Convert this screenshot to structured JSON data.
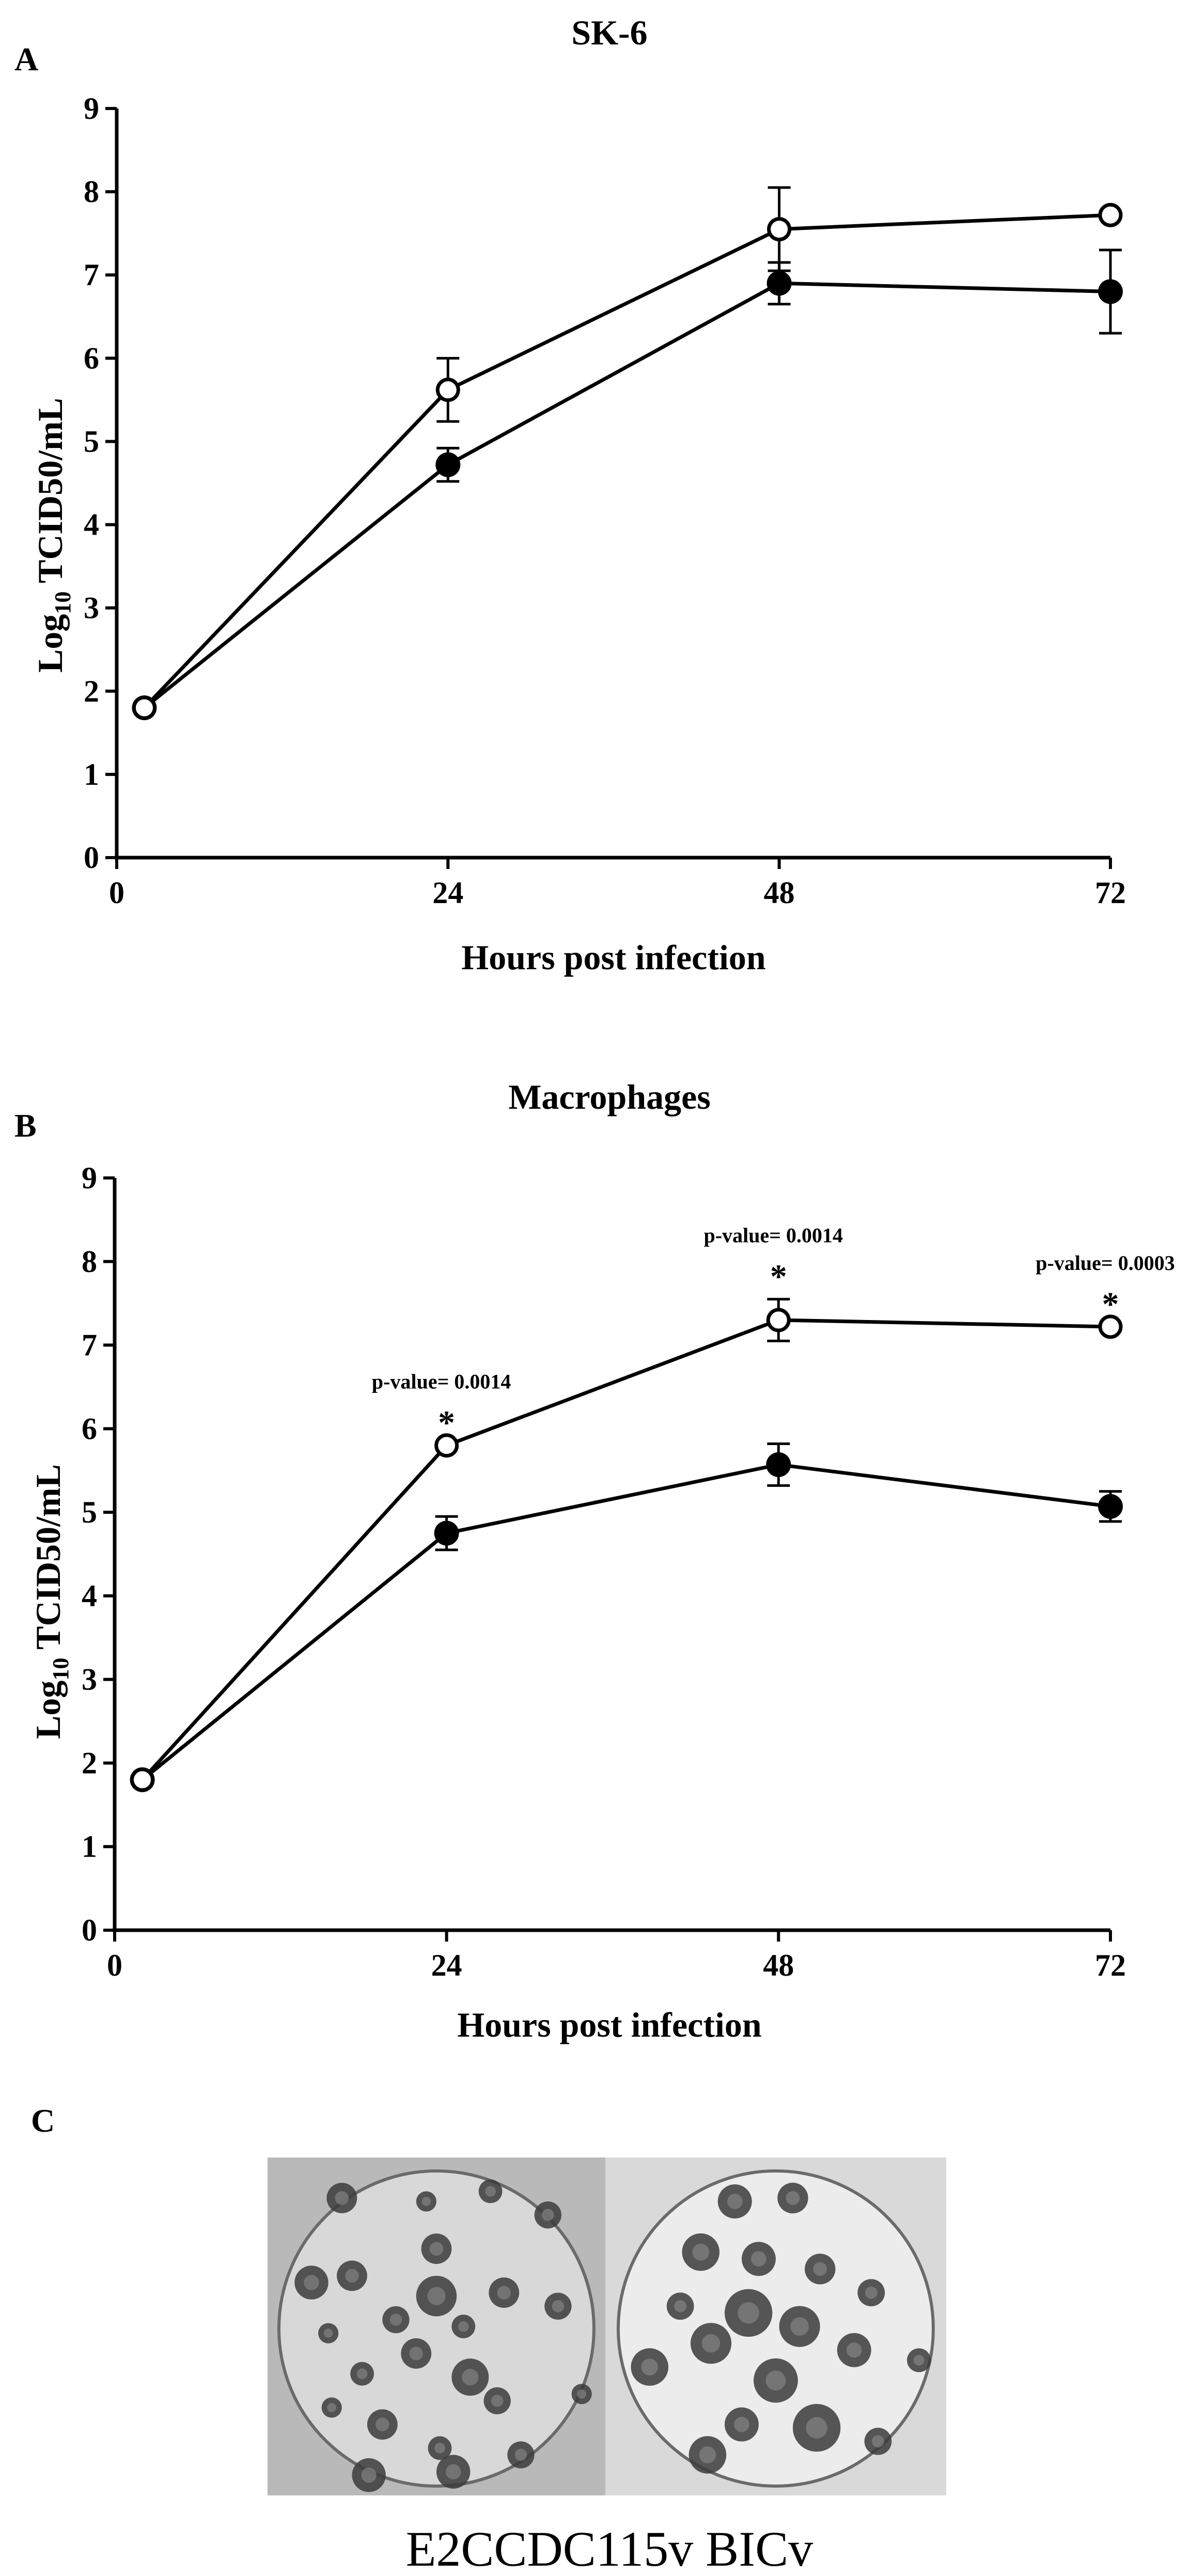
{
  "panel_c": {
    "letter": "C",
    "caption": "E2CCDC115v BICv",
    "wells": [
      {
        "name": "E2CCDC115v",
        "background": "#b9b9b9",
        "well_fill": "#d8d8d8",
        "plaque": "#3b3b3b"
      },
      {
        "name": "BICv",
        "background": "#d9d9d9",
        "well_fill": "#ececec",
        "plaque": "#3b3b3b"
      }
    ]
  },
  "chart_data": [
    {
      "type": "line",
      "panel": "A",
      "title": "SK-6",
      "xlabel": "Hours post infection",
      "ylabel": "Log10 TCID50/mL",
      "ylabel_base": "Log",
      "ylabel_sub": "10",
      "ylabel_rest": " TCID50/mL",
      "xlim": [
        0,
        72
      ],
      "ylim": [
        0,
        9
      ],
      "xticks": [
        0,
        24,
        48,
        72
      ],
      "yticks": [
        0,
        1,
        2,
        3,
        4,
        5,
        6,
        7,
        8,
        9
      ],
      "series": [
        {
          "name": "open circles",
          "marker": "open",
          "x": [
            2,
            24,
            48,
            72
          ],
          "y": [
            1.8,
            5.62,
            7.55,
            7.72
          ],
          "err": [
            0,
            0.38,
            0.5,
            0
          ]
        },
        {
          "name": "filled circles",
          "marker": "filled",
          "x": [
            2,
            24,
            48,
            72
          ],
          "y": [
            1.8,
            4.72,
            6.9,
            6.8
          ],
          "err": [
            0,
            0.2,
            0.25,
            0.5
          ]
        }
      ],
      "annotations": []
    },
    {
      "type": "line",
      "panel": "B",
      "title": "Macrophages",
      "xlabel": "Hours post infection",
      "ylabel": "Log10 TCID50/mL",
      "ylabel_base": "Log",
      "ylabel_sub": "10",
      "ylabel_rest": " TCID50/mL",
      "xlim": [
        0,
        72
      ],
      "ylim": [
        0,
        9
      ],
      "xticks": [
        0,
        24,
        48,
        72
      ],
      "yticks": [
        0,
        1,
        2,
        3,
        4,
        5,
        6,
        7,
        8,
        9
      ],
      "series": [
        {
          "name": "open circles",
          "marker": "open",
          "x": [
            2,
            24,
            48,
            72
          ],
          "y": [
            1.8,
            5.8,
            7.3,
            7.22
          ],
          "err": [
            0,
            0,
            0.25,
            0
          ]
        },
        {
          "name": "filled circles",
          "marker": "filled",
          "x": [
            2,
            24,
            48,
            72
          ],
          "y": [
            1.8,
            4.75,
            5.57,
            5.07
          ],
          "err": [
            0,
            0.2,
            0.25,
            0.18
          ]
        }
      ],
      "annotations": [
        {
          "x": 24,
          "y": 5.8,
          "label": "p-value= 0.0014",
          "star": "*"
        },
        {
          "x": 48,
          "y": 7.55,
          "label": "p-value= 0.0014",
          "star": "*"
        },
        {
          "x": 72,
          "y": 7.22,
          "label": "p-value= 0.0003",
          "star": "*"
        }
      ]
    }
  ]
}
